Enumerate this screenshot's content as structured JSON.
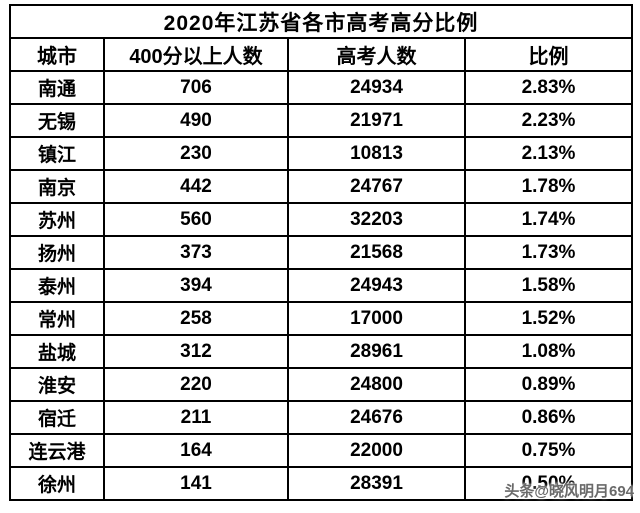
{
  "title": "2020年江苏省各市高考高分比例",
  "watermark": "头条@晓风明月694",
  "chart_data": {
    "type": "table",
    "title": "2020年江苏省各市高考高分比例",
    "columns": [
      "城市",
      "400分以上人数",
      "高考人数",
      "比例"
    ],
    "rows": [
      [
        "南通",
        "706",
        "24934",
        "2.83%"
      ],
      [
        "无锡",
        "490",
        "21971",
        "2.23%"
      ],
      [
        "镇江",
        "230",
        "10813",
        "2.13%"
      ],
      [
        "南京",
        "442",
        "24767",
        "1.78%"
      ],
      [
        "苏州",
        "560",
        "32203",
        "1.74%"
      ],
      [
        "扬州",
        "373",
        "21568",
        "1.73%"
      ],
      [
        "泰州",
        "394",
        "24943",
        "1.58%"
      ],
      [
        "常州",
        "258",
        "17000",
        "1.52%"
      ],
      [
        "盐城",
        "312",
        "28961",
        "1.08%"
      ],
      [
        "淮安",
        "220",
        "24800",
        "0.89%"
      ],
      [
        "宿迁",
        "211",
        "24676",
        "0.86%"
      ],
      [
        "连云港",
        "164",
        "22000",
        "0.75%"
      ],
      [
        "徐州",
        "141",
        "28391",
        "0.50%"
      ]
    ]
  }
}
